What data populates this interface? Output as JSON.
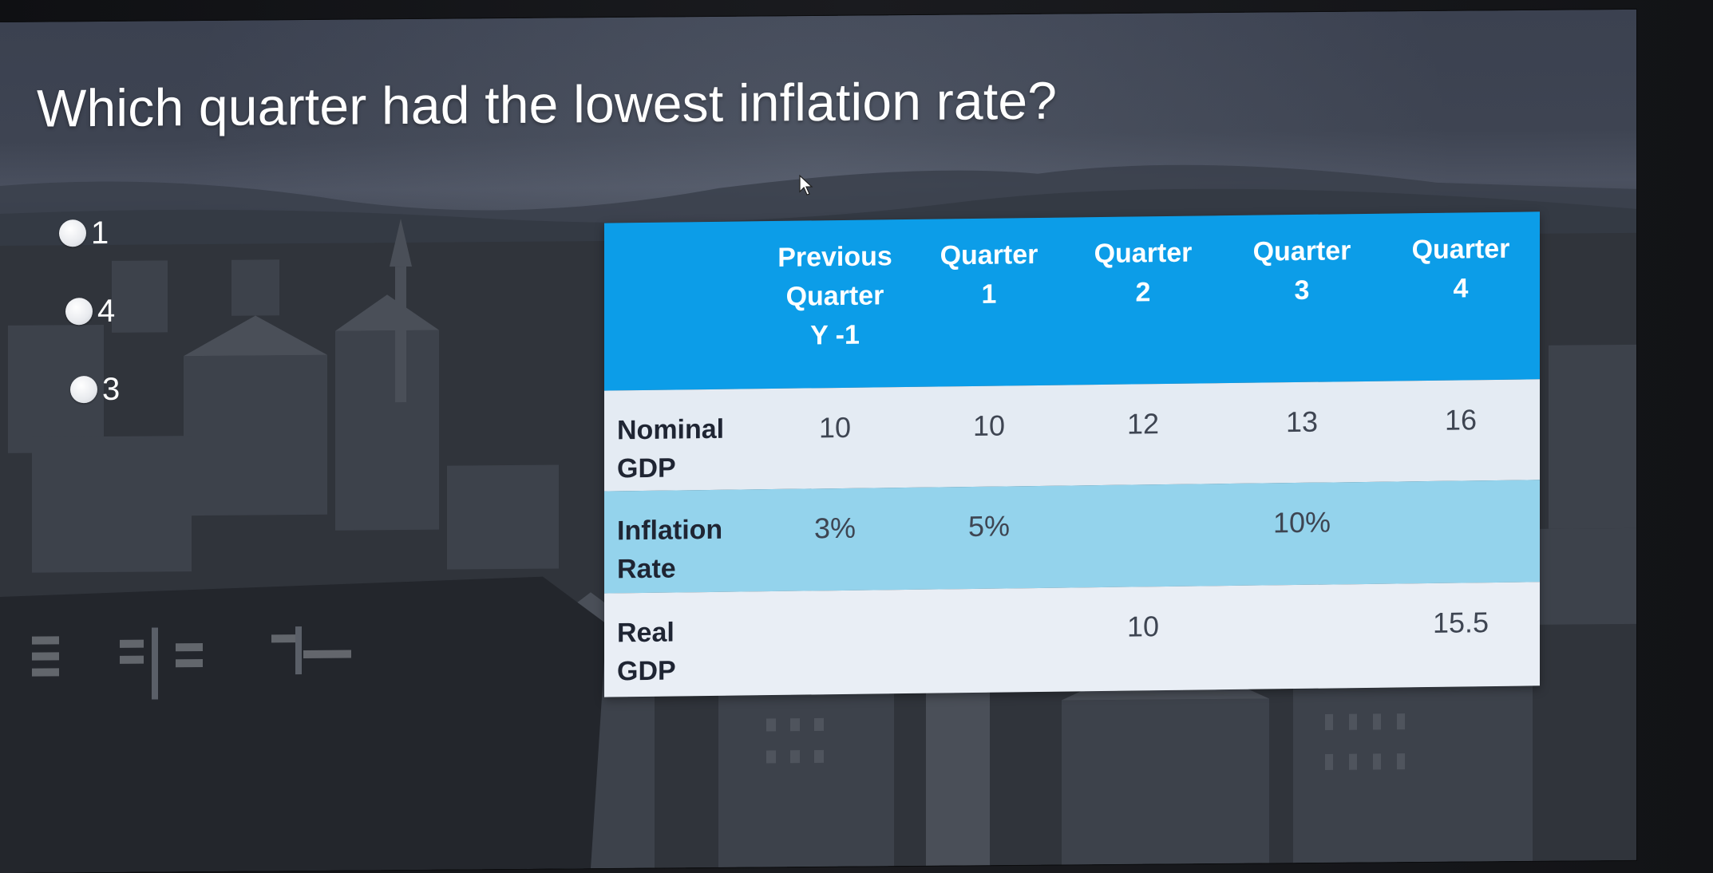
{
  "slide": {
    "title": "Which quarter had the lowest inflation rate?"
  },
  "options": [
    {
      "label": "1"
    },
    {
      "label": "4"
    },
    {
      "label": "3"
    }
  ],
  "table": {
    "headers": [
      "",
      "Previous\nQuarter\nY -1",
      "Quarter\n1",
      "Quarter\n2",
      "Quarter\n3",
      "Quarter\n4"
    ],
    "rows": [
      {
        "label": "Nominal\nGDP",
        "cells": [
          "10",
          "10",
          "12",
          "13",
          "16"
        ]
      },
      {
        "label": "Inflation\nRate",
        "cells": [
          "3%",
          "5%",
          "",
          "10%",
          ""
        ]
      },
      {
        "label": "Real\nGDP",
        "cells": [
          "",
          "",
          "10",
          "",
          "15.5"
        ]
      }
    ]
  },
  "colors": {
    "header_blue": "#0c9de8",
    "row_light": "#e4ebf3",
    "row_blue": "#94d3ec"
  },
  "icons": {
    "cursor": "mouse-pointer-icon"
  }
}
